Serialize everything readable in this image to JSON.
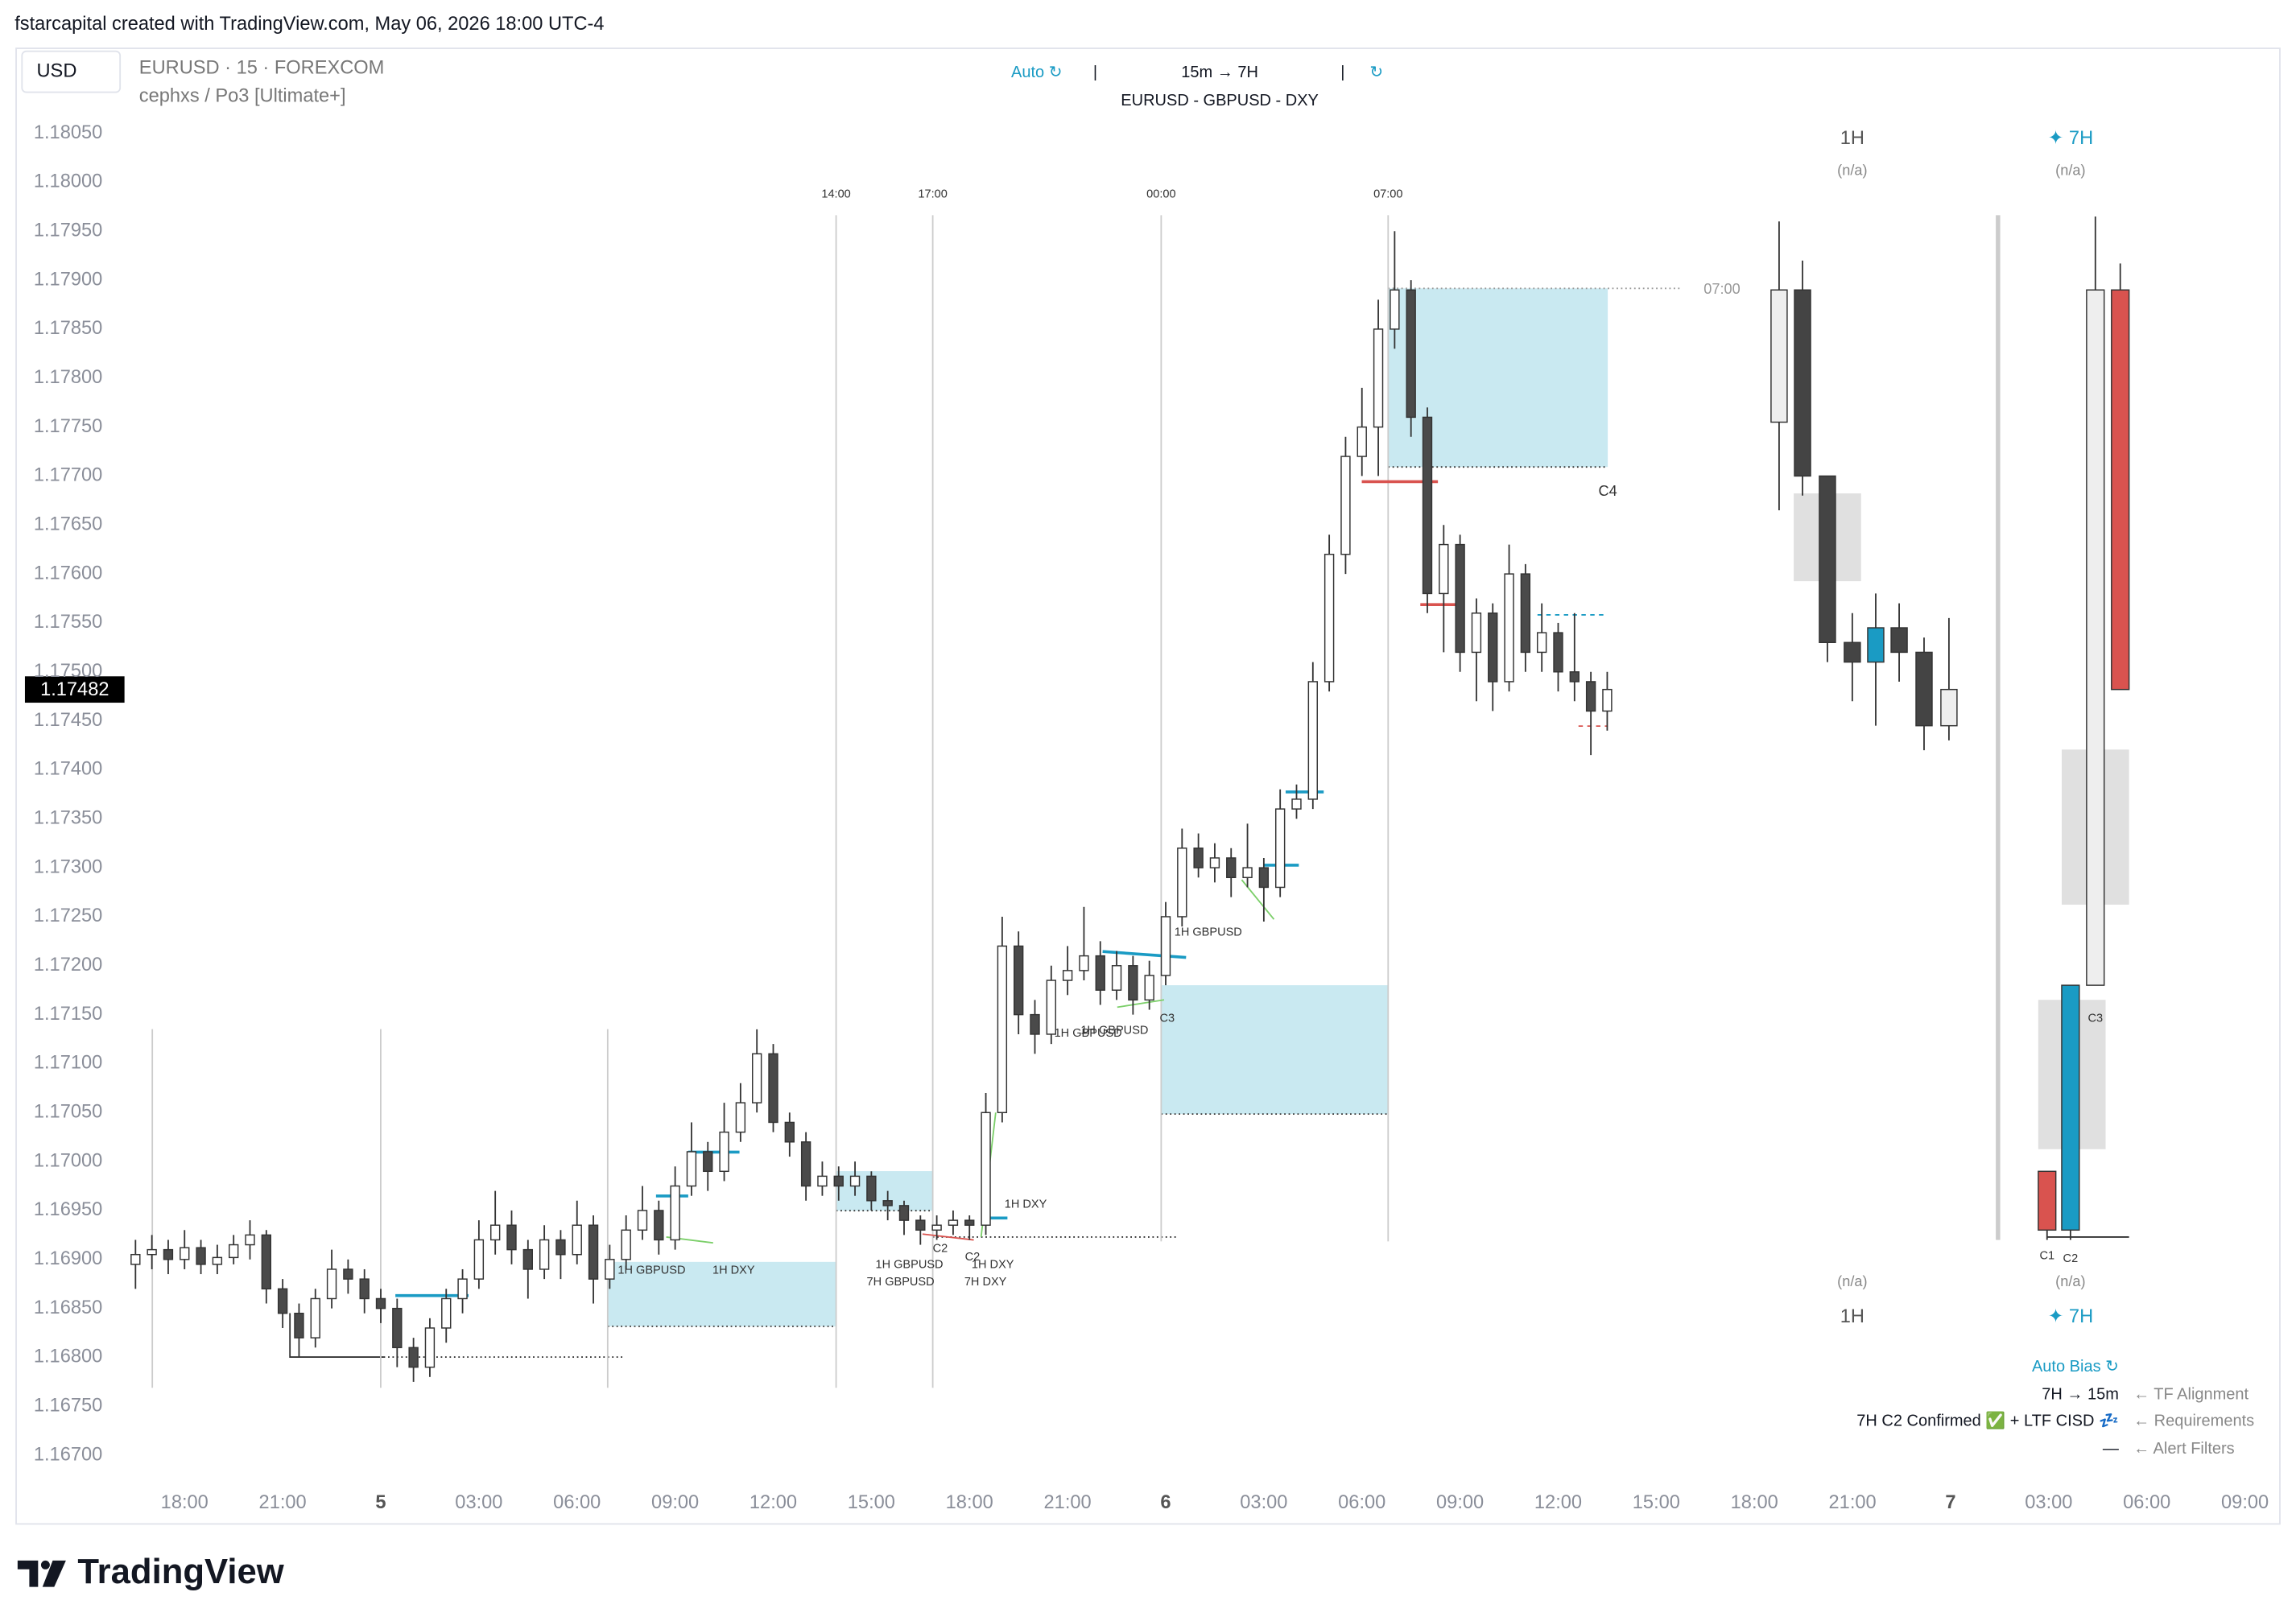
{
  "header": {
    "credit": "fstarcapital created with TradingView.com, May 06, 2026 18:00 UTC-4",
    "currency": "USD",
    "symbol": "EURUSD · 15 · FOREXCOM",
    "indicator": "cephxs / Po3 [Ultimate+]",
    "mode": "Auto ↻",
    "separator": "|",
    "timeframes": "15m → 7H",
    "refresh": "↻",
    "pairs": "EURUSD - GBPUSD - DXY"
  },
  "chart_data": {
    "type": "candlestick",
    "grid": false,
    "up_color": "#ffffff",
    "down_color": "#4a4a4a",
    "wick_color": "#333333",
    "xlim": [
      -5,
      64
    ],
    "ylim": [
      1.1668,
      1.1812
    ],
    "xticks": [
      {
        "value": 0,
        "label": "18:00"
      },
      {
        "value": 3,
        "label": "21:00"
      },
      {
        "value": 6,
        "label": "5"
      },
      {
        "value": 9,
        "label": "03:00"
      },
      {
        "value": 12,
        "label": "06:00"
      },
      {
        "value": 15,
        "label": "09:00"
      },
      {
        "value": 18,
        "label": "12:00"
      },
      {
        "value": 21,
        "label": "15:00"
      },
      {
        "value": 24,
        "label": "18:00"
      },
      {
        "value": 27,
        "label": "21:00"
      },
      {
        "value": 30,
        "label": "6"
      },
      {
        "value": 33,
        "label": "03:00"
      },
      {
        "value": 36,
        "label": "06:00"
      },
      {
        "value": 39,
        "label": "09:00"
      },
      {
        "value": 42,
        "label": "12:00"
      },
      {
        "value": 45,
        "label": "15:00"
      },
      {
        "value": 48,
        "label": "18:00"
      },
      {
        "value": 51,
        "label": "21:00"
      },
      {
        "value": 54,
        "label": "7"
      },
      {
        "value": 57,
        "label": "03:00"
      },
      {
        "value": 60,
        "label": "06:00"
      },
      {
        "value": 63,
        "label": "09:00"
      }
    ],
    "yticks": [
      {
        "value": 1.167,
        "label": "1.16700"
      },
      {
        "value": 1.1675,
        "label": "1.16750"
      },
      {
        "value": 1.168,
        "label": "1.16800"
      },
      {
        "value": 1.1685,
        "label": "1.16850"
      },
      {
        "value": 1.169,
        "label": "1.16900"
      },
      {
        "value": 1.1695,
        "label": "1.16950"
      },
      {
        "value": 1.17,
        "label": "1.17000"
      },
      {
        "value": 1.1705,
        "label": "1.17050"
      },
      {
        "value": 1.171,
        "label": "1.17100"
      },
      {
        "value": 1.1715,
        "label": "1.17150"
      },
      {
        "value": 1.172,
        "label": "1.17200"
      },
      {
        "value": 1.1725,
        "label": "1.17250"
      },
      {
        "value": 1.173,
        "label": "1.17300"
      },
      {
        "value": 1.1735,
        "label": "1.17350"
      },
      {
        "value": 1.174,
        "label": "1.17400"
      },
      {
        "value": 1.1745,
        "label": "1.17450"
      },
      {
        "value": 1.175,
        "label": "1.17500"
      },
      {
        "value": 1.1755,
        "label": "1.17550"
      },
      {
        "value": 1.176,
        "label": "1.17600"
      },
      {
        "value": 1.1765,
        "label": "1.17650"
      },
      {
        "value": 1.177,
        "label": "1.17700"
      },
      {
        "value": 1.1775,
        "label": "1.17750"
      },
      {
        "value": 1.178,
        "label": "1.17800"
      },
      {
        "value": 1.1785,
        "label": "1.17850"
      },
      {
        "value": 1.179,
        "label": "1.17900"
      },
      {
        "value": 1.1795,
        "label": "1.17950"
      },
      {
        "value": 1.18,
        "label": "1.18000"
      },
      {
        "value": 1.1805,
        "label": "1.18050"
      }
    ],
    "x": [
      -1.5,
      -1,
      -0.5,
      0,
      0.5,
      1,
      1.5,
      2,
      2.5,
      3,
      3.5,
      4,
      4.5,
      5,
      5.5,
      6,
      6.5,
      7,
      7.5,
      8,
      8.5,
      9,
      9.5,
      10,
      10.5,
      11,
      11.5,
      12,
      12.5,
      13,
      13.5,
      14,
      14.5,
      15,
      15.5,
      16,
      16.5,
      17,
      17.5,
      18,
      18.5,
      19,
      19.5,
      20,
      20.5,
      21,
      21.5,
      22,
      22.5,
      23,
      23.5,
      24,
      24.5,
      25,
      25.5,
      26,
      26.5,
      27,
      27.5,
      28,
      28.5,
      29,
      29.5,
      30,
      30.5,
      31,
      31.5,
      32,
      32.5,
      33,
      33.5,
      34,
      34.5,
      35,
      35.5,
      36,
      36.5,
      37,
      37.5,
      38,
      38.5,
      39,
      39.5,
      40,
      40.5,
      41,
      41.5,
      42,
      42.5,
      43,
      43.5
    ],
    "ohlc": [
      [
        1.16895,
        1.1692,
        1.1687,
        1.16905
      ],
      [
        1.16905,
        1.16925,
        1.1689,
        1.1691
      ],
      [
        1.1691,
        1.1692,
        1.16885,
        1.169
      ],
      [
        1.169,
        1.1693,
        1.1689,
        1.16912
      ],
      [
        1.16912,
        1.1692,
        1.16885,
        1.16895
      ],
      [
        1.16895,
        1.16915,
        1.16885,
        1.16902
      ],
      [
        1.16902,
        1.16925,
        1.16895,
        1.16915
      ],
      [
        1.16915,
        1.1694,
        1.169,
        1.16925
      ],
      [
        1.16925,
        1.1693,
        1.16855,
        1.1687
      ],
      [
        1.1687,
        1.1688,
        1.1683,
        1.16845
      ],
      [
        1.16845,
        1.16855,
        1.168,
        1.1682
      ],
      [
        1.1682,
        1.1687,
        1.1681,
        1.1686
      ],
      [
        1.1686,
        1.1691,
        1.1685,
        1.1689
      ],
      [
        1.1689,
        1.169,
        1.16865,
        1.1688
      ],
      [
        1.1688,
        1.1689,
        1.16845,
        1.1686
      ],
      [
        1.1686,
        1.1687,
        1.16835,
        1.1685
      ],
      [
        1.1685,
        1.1686,
        1.1679,
        1.1681
      ],
      [
        1.1681,
        1.1682,
        1.16775,
        1.1679
      ],
      [
        1.1679,
        1.1684,
        1.1678,
        1.1683
      ],
      [
        1.1683,
        1.1687,
        1.16815,
        1.1686
      ],
      [
        1.1686,
        1.1689,
        1.16845,
        1.1688
      ],
      [
        1.1688,
        1.1694,
        1.1687,
        1.1692
      ],
      [
        1.1692,
        1.1697,
        1.16905,
        1.16935
      ],
      [
        1.16935,
        1.1695,
        1.16895,
        1.1691
      ],
      [
        1.1691,
        1.1692,
        1.1686,
        1.1689
      ],
      [
        1.1689,
        1.16935,
        1.1688,
        1.1692
      ],
      [
        1.1692,
        1.1693,
        1.1688,
        1.16905
      ],
      [
        1.16905,
        1.1696,
        1.16895,
        1.16935
      ],
      [
        1.16935,
        1.16945,
        1.16855,
        1.1688
      ],
      [
        1.1688,
        1.16915,
        1.1687,
        1.169
      ],
      [
        1.169,
        1.16945,
        1.1689,
        1.1693
      ],
      [
        1.1693,
        1.16975,
        1.1692,
        1.1695
      ],
      [
        1.1695,
        1.1696,
        1.16905,
        1.1692
      ],
      [
        1.1692,
        1.16995,
        1.1691,
        1.16975
      ],
      [
        1.16975,
        1.1704,
        1.16965,
        1.1701
      ],
      [
        1.1701,
        1.1702,
        1.1697,
        1.1699
      ],
      [
        1.1699,
        1.1706,
        1.1698,
        1.1703
      ],
      [
        1.1703,
        1.1708,
        1.1702,
        1.1706
      ],
      [
        1.1706,
        1.17135,
        1.1705,
        1.1711
      ],
      [
        1.1711,
        1.1712,
        1.1703,
        1.1704
      ],
      [
        1.1704,
        1.1705,
        1.17005,
        1.1702
      ],
      [
        1.1702,
        1.1703,
        1.1696,
        1.16975
      ],
      [
        1.16975,
        1.17,
        1.16965,
        1.16985
      ],
      [
        1.16985,
        1.16995,
        1.1696,
        1.16975
      ],
      [
        1.16975,
        1.17,
        1.16965,
        1.16985
      ],
      [
        1.16985,
        1.1699,
        1.1695,
        1.1696
      ],
      [
        1.1696,
        1.1697,
        1.1694,
        1.16955
      ],
      [
        1.16955,
        1.1696,
        1.16925,
        1.1694
      ],
      [
        1.1694,
        1.16945,
        1.16915,
        1.1693
      ],
      [
        1.1693,
        1.16945,
        1.1692,
        1.16935
      ],
      [
        1.16935,
        1.1695,
        1.16925,
        1.1694
      ],
      [
        1.1694,
        1.16945,
        1.1692,
        1.16935
      ],
      [
        1.16935,
        1.1707,
        1.16925,
        1.1705
      ],
      [
        1.1705,
        1.1725,
        1.1704,
        1.1722
      ],
      [
        1.1722,
        1.17235,
        1.1713,
        1.1715
      ],
      [
        1.1715,
        1.17165,
        1.1711,
        1.1713
      ],
      [
        1.1713,
        1.172,
        1.1712,
        1.17185
      ],
      [
        1.17185,
        1.1722,
        1.1717,
        1.17195
      ],
      [
        1.17195,
        1.1726,
        1.17185,
        1.1721
      ],
      [
        1.1721,
        1.17225,
        1.1716,
        1.17175
      ],
      [
        1.17175,
        1.17215,
        1.17165,
        1.172
      ],
      [
        1.172,
        1.1721,
        1.1715,
        1.17165
      ],
      [
        1.17165,
        1.17205,
        1.17155,
        1.1719
      ],
      [
        1.1719,
        1.17265,
        1.1718,
        1.1725
      ],
      [
        1.1725,
        1.1734,
        1.1724,
        1.1732
      ],
      [
        1.1732,
        1.17335,
        1.1729,
        1.173
      ],
      [
        1.173,
        1.17325,
        1.17285,
        1.1731
      ],
      [
        1.1731,
        1.1732,
        1.1727,
        1.1729
      ],
      [
        1.1729,
        1.17345,
        1.1728,
        1.173
      ],
      [
        1.173,
        1.1731,
        1.17245,
        1.1728
      ],
      [
        1.1728,
        1.1738,
        1.1727,
        1.1736
      ],
      [
        1.1736,
        1.17385,
        1.1735,
        1.1737
      ],
      [
        1.1737,
        1.1751,
        1.1736,
        1.1749
      ],
      [
        1.1749,
        1.1764,
        1.1748,
        1.1762
      ],
      [
        1.1762,
        1.1774,
        1.176,
        1.1772
      ],
      [
        1.1772,
        1.1779,
        1.177,
        1.1775
      ],
      [
        1.1775,
        1.1788,
        1.177,
        1.1785
      ],
      [
        1.1785,
        1.1795,
        1.1783,
        1.1789
      ],
      [
        1.1789,
        1.179,
        1.1774,
        1.1776
      ],
      [
        1.1776,
        1.1777,
        1.1756,
        1.1758
      ],
      [
        1.1758,
        1.1765,
        1.1752,
        1.1763
      ],
      [
        1.1763,
        1.1764,
        1.175,
        1.1752
      ],
      [
        1.1752,
        1.17575,
        1.1747,
        1.1756
      ],
      [
        1.1756,
        1.1757,
        1.1746,
        1.1749
      ],
      [
        1.1749,
        1.1763,
        1.1748,
        1.176
      ],
      [
        1.176,
        1.1761,
        1.175,
        1.1752
      ],
      [
        1.1752,
        1.1757,
        1.175,
        1.1754
      ],
      [
        1.1754,
        1.1755,
        1.1748,
        1.175
      ],
      [
        1.175,
        1.1756,
        1.1747,
        1.1749
      ],
      [
        1.1749,
        1.175,
        1.17415,
        1.1746
      ],
      [
        1.1746,
        1.175,
        1.1744,
        1.17482
      ]
    ],
    "sessions": [
      "14:00",
      "17:00",
      "00:00",
      "07:00"
    ],
    "annotations": [
      "07:00",
      "C4",
      "1H GBPUSD",
      "1H GBPUSD",
      "1H GBPUSD",
      "C3",
      "1H DXY",
      "C2",
      "C2",
      "1H GBPUSD",
      "1H DXY",
      "7H GBPUSD",
      "7H DXY",
      "1H GBPUSD",
      "1H DXY",
      "C1",
      "C2",
      "C3"
    ],
    "htf": [
      {
        "name": "1H",
        "status": "(n/a)",
        "ohlc": [
          [
            1.17755,
            1.1796,
            1.17665,
            1.1789
          ],
          [
            1.1789,
            1.1792,
            1.1768,
            1.177
          ],
          [
            1.177,
            1.177,
            1.1751,
            1.1753
          ],
          [
            1.1753,
            1.1756,
            1.1747,
            1.1751
          ],
          [
            1.1751,
            1.1758,
            1.17445,
            1.17545
          ],
          [
            1.17545,
            1.1757,
            1.1749,
            1.1752
          ],
          [
            1.1752,
            1.17535,
            1.1742,
            1.17445
          ],
          [
            1.17445,
            1.17555,
            1.1743,
            1.17482
          ]
        ],
        "colors": [
          "#eeeeee",
          "#444444",
          "#444444",
          "#444444",
          "#1a9bc4",
          "#444444",
          "#444444",
          "#eeeeee"
        ]
      },
      {
        "name": "✦ 7H",
        "status": "(n/a)",
        "ohlc": [
          [
            1.1699,
            1.1699,
            1.1692,
            1.1693
          ],
          [
            1.1693,
            1.1718,
            1.1692,
            1.1718
          ],
          [
            1.1718,
            1.17965,
            1.1718,
            1.1789
          ],
          [
            1.1789,
            1.17917,
            1.17482,
            1.17482
          ]
        ],
        "colors": [
          "#d9534f",
          "#1a9bc4",
          "#eeeeee",
          "#d9534f"
        ]
      }
    ]
  },
  "panel": {
    "bias": "Auto Bias ↻",
    "alignment": "7H → 15m",
    "alignment_note": "← TF Alignment",
    "requirements": "7H C2 Confirmed ✅ + LTF CISD 💤",
    "requirements_note": "← Requirements",
    "filters": "—",
    "filters_note": "← Alert Filters"
  },
  "logo": "TradingView"
}
